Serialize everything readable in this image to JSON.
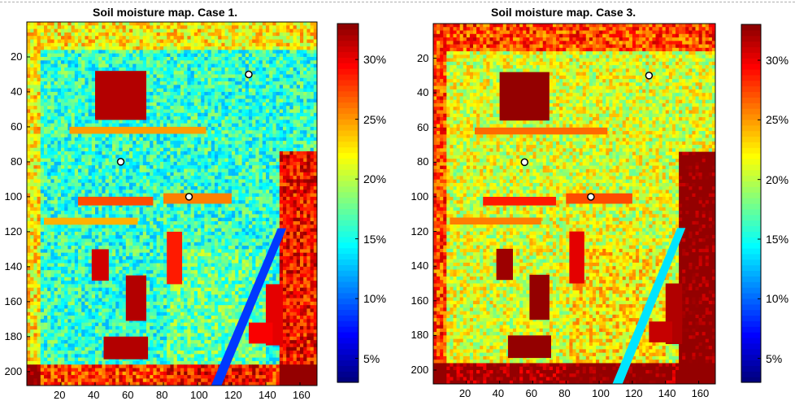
{
  "chart_data": [
    {
      "type": "heatmap",
      "title": "Soil moisture map. Case 1.",
      "x_ticks": [
        20,
        40,
        60,
        80,
        100,
        120,
        140,
        160
      ],
      "y_ticks": [
        20,
        40,
        60,
        80,
        100,
        120,
        140,
        160,
        180,
        200
      ],
      "xlim": [
        0,
        170
      ],
      "ylim": [
        0,
        208
      ],
      "y_reversed": true,
      "colorbar": {
        "range": [
          3,
          33
        ],
        "ticks": [
          5,
          10,
          15,
          20,
          25,
          30
        ],
        "tick_labels": [
          "5%",
          "10%",
          "15%",
          "20%",
          "25%",
          "30%"
        ],
        "colormap": "jet"
      }
    },
    {
      "type": "heatmap",
      "title": "Soil moisture map. Case 3.",
      "x_ticks": [
        20,
        40,
        60,
        80,
        100,
        120,
        140,
        160
      ],
      "y_ticks": [
        20,
        40,
        60,
        80,
        100,
        120,
        140,
        160,
        180,
        200
      ],
      "xlim": [
        0,
        170
      ],
      "ylim": [
        0,
        208
      ],
      "y_reversed": true,
      "colorbar": {
        "range": [
          3,
          33
        ],
        "ticks": [
          5,
          10,
          15,
          20,
          25,
          30
        ],
        "tick_labels": [
          "5%",
          "10%",
          "15%",
          "20%",
          "25%",
          "30%"
        ],
        "colormap": "jet"
      }
    }
  ]
}
